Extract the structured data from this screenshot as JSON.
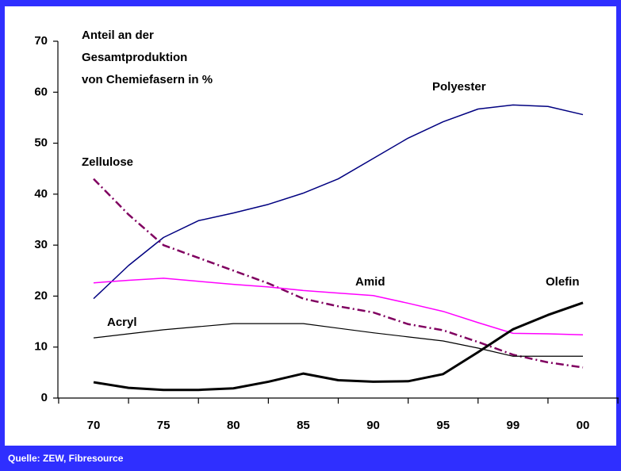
{
  "chart_data": {
    "type": "line",
    "title_lines": [
      "Anteil an der",
      "Gesamtproduktion",
      "von Chemiefasern in %"
    ],
    "source": "Quelle: ZEW, Fibresource",
    "categories": [
      "70",
      null,
      "75",
      null,
      "80",
      null,
      "85",
      null,
      "90",
      null,
      "95",
      null,
      "99",
      null,
      "00"
    ],
    "ylim": [
      0,
      70
    ],
    "yticks": [
      0,
      10,
      20,
      30,
      40,
      50,
      60,
      70
    ],
    "series": [
      {
        "name": "Polyester",
        "color": "#000080",
        "dash": "solid",
        "width": 1.5,
        "values": [
          19.5,
          26,
          31.5,
          34.8,
          36.3,
          38,
          40.2,
          43,
          47,
          51,
          54.2,
          56.7,
          57.5,
          57.2,
          55.6
        ]
      },
      {
        "name": "Zellulose",
        "color": "#800060",
        "dash": "dashdot",
        "width": 2.5,
        "values": [
          43,
          36,
          30,
          27.5,
          25,
          22.5,
          19.5,
          18,
          16.8,
          14.5,
          13.3,
          11,
          8.5,
          7,
          6
        ]
      },
      {
        "name": "Amid",
        "color": "#ff00ff",
        "dash": "solid",
        "width": 1.5,
        "values": [
          22.6,
          23.1,
          23.5,
          22.9,
          22.3,
          21.8,
          21.1,
          20.6,
          20.1,
          18.6,
          17,
          14.8,
          12.7,
          12.6,
          12.4
        ]
      },
      {
        "name": "Acryl",
        "color": "#000000",
        "dash": "solid",
        "width": 1.2,
        "values": [
          11.8,
          12.6,
          13.4,
          14,
          14.6,
          14.6,
          14.6,
          13.7,
          12.8,
          12,
          11.2,
          9.8,
          8.2,
          8.2,
          8.2
        ]
      },
      {
        "name": "Olefin",
        "color": "#000000",
        "dash": "solid",
        "width": 3,
        "values": [
          3.1,
          2,
          1.6,
          1.6,
          1.9,
          3.2,
          4.8,
          3.5,
          3.2,
          3.3,
          4.7,
          9,
          13.5,
          16.3,
          18.7
        ]
      }
    ]
  }
}
